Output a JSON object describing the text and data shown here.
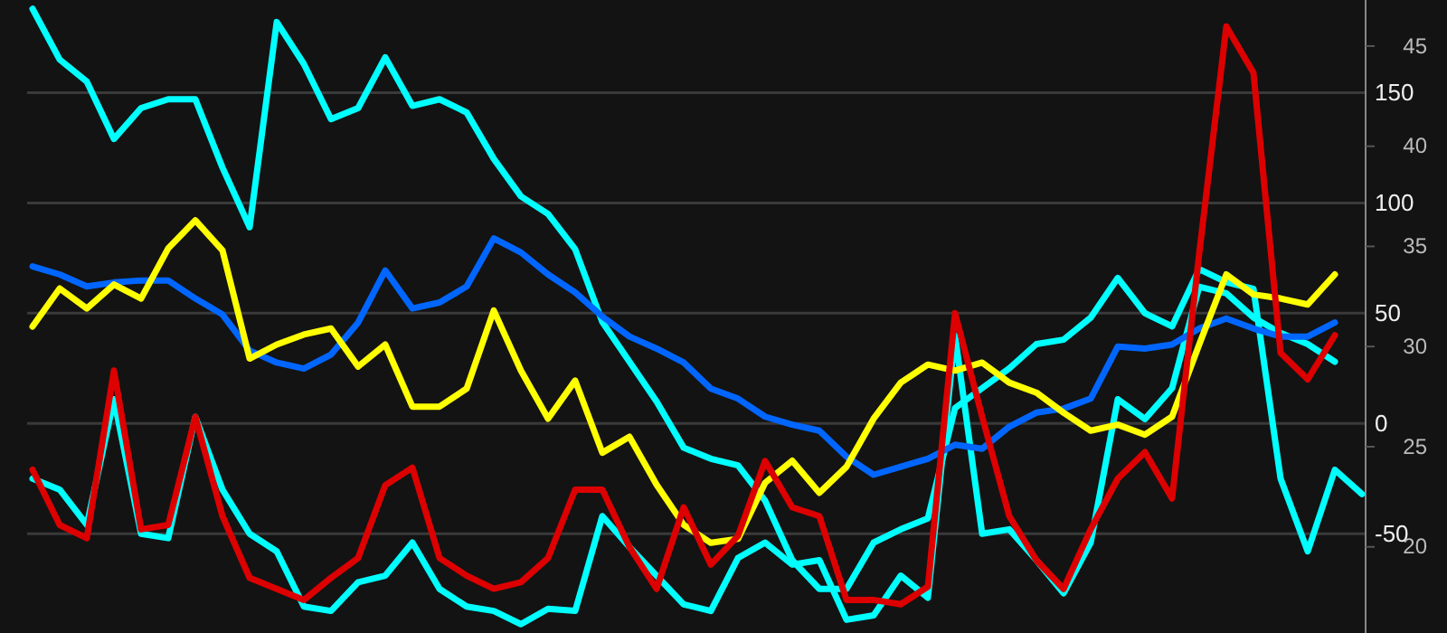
{
  "chart_data": {
    "type": "line",
    "categories": [
      null,
      null,
      null,
      null,
      null,
      null,
      null,
      null,
      null,
      null,
      null,
      null,
      null,
      null,
      null,
      null,
      null,
      null,
      null,
      null,
      null,
      null,
      null,
      null,
      null,
      null,
      null,
      null,
      null,
      null,
      null,
      null,
      null,
      null,
      null,
      null,
      null,
      null,
      null,
      null,
      null,
      null,
      null,
      null,
      null,
      null,
      null,
      null,
      null,
      null
    ],
    "series": [
      {
        "color": "#00ffff",
        "values": [
          188,
          165,
          155,
          129,
          143,
          147,
          147,
          116,
          89,
          182,
          163,
          138,
          143,
          166,
          144,
          147,
          141,
          120,
          103,
          95,
          79,
          46,
          28,
          10,
          -11,
          -16,
          -19,
          -35,
          -62,
          -75,
          -75,
          -54,
          -48,
          -43,
          7,
          16,
          25,
          36,
          38,
          48,
          66,
          50,
          44,
          70,
          64,
          61,
          -25,
          -58,
          -21,
          -32
        ]
      },
      {
        "color": "#00ffff",
        "values": [
          -25,
          -30,
          -46,
          11,
          -50,
          -52,
          3,
          -30,
          -50,
          -58,
          -83,
          -85,
          -72,
          -69,
          -54,
          -75,
          -83,
          -85,
          -91,
          -84,
          -85,
          -42,
          -56,
          -69,
          -82,
          -85,
          -61,
          -54,
          -64,
          -62,
          -89,
          -87,
          -69,
          -79,
          40,
          -50,
          -48,
          -62,
          -77,
          -54,
          11,
          2,
          16,
          62,
          59,
          48,
          41,
          36,
          28,
          null
        ]
      },
      {
        "color": "#0066ff",
        "axis": "y2",
        "values": [
          34.0,
          33.6,
          33.0,
          33.2,
          33.3,
          33.3,
          32.4,
          31.6,
          29.8,
          29.2,
          28.9,
          29.6,
          31.2,
          33.8,
          31.9,
          32.2,
          33.0,
          35.4,
          34.7,
          33.6,
          32.7,
          31.5,
          30.5,
          29.9,
          29.2,
          27.9,
          27.4,
          26.5,
          26.1,
          25.8,
          24.5,
          23.6,
          24.0,
          24.4,
          25.1,
          24.9,
          26.0,
          26.7,
          26.9,
          27.4,
          30.0,
          29.9,
          30.1,
          30.9,
          31.4,
          30.9,
          30.5,
          30.5,
          31.2,
          null
        ]
      },
      {
        "color": "#ffff00",
        "axis": "y2",
        "values": [
          31.0,
          32.9,
          31.9,
          33.1,
          32.4,
          34.9,
          36.3,
          34.8,
          29.4,
          30.1,
          30.6,
          30.9,
          29.0,
          30.1,
          27.0,
          27.0,
          27.9,
          31.8,
          28.8,
          26.4,
          28.3,
          24.7,
          25.5,
          23.1,
          21.1,
          20.2,
          20.4,
          23.2,
          24.3,
          22.7,
          24.0,
          26.4,
          28.2,
          29.1,
          28.8,
          29.2,
          28.2,
          27.7,
          26.7,
          25.8,
          26.1,
          25.6,
          26.5,
          30.1,
          33.6,
          32.6,
          32.4,
          32.1,
          33.6,
          null
        ]
      },
      {
        "color": "#dd0000",
        "values": [
          -21,
          -46,
          -52,
          24,
          -48,
          -46,
          3,
          -42,
          -70,
          -75,
          -80,
          -70,
          -61,
          -28,
          -20,
          -61,
          -69,
          -75,
          -72,
          -61,
          -30,
          -30,
          -56,
          -75,
          -38,
          -64,
          -51,
          -17,
          -38,
          -42,
          -80,
          -80,
          -82,
          -74,
          50,
          3,
          -42,
          -62,
          -75,
          -48,
          -25,
          -13,
          -34,
          77,
          180,
          159,
          32,
          20,
          40,
          null
        ]
      }
    ],
    "ylim": [
      -95,
      192
    ],
    "yticks": [
      -50,
      0,
      50,
      100,
      150
    ],
    "y2lim": [
      15.7,
      47.3
    ],
    "y2ticks": [
      20,
      25,
      30,
      35,
      40,
      45
    ],
    "grid": "y"
  }
}
